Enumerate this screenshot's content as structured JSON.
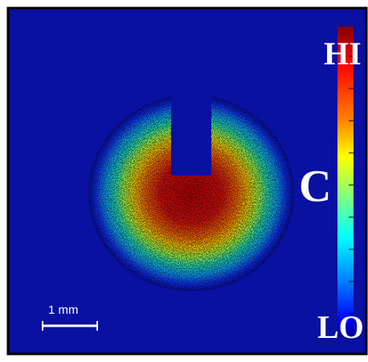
{
  "labels": {
    "high": "HI",
    "center": "C",
    "low": "LO"
  },
  "scale_bar": {
    "label": "1 mm"
  }
}
